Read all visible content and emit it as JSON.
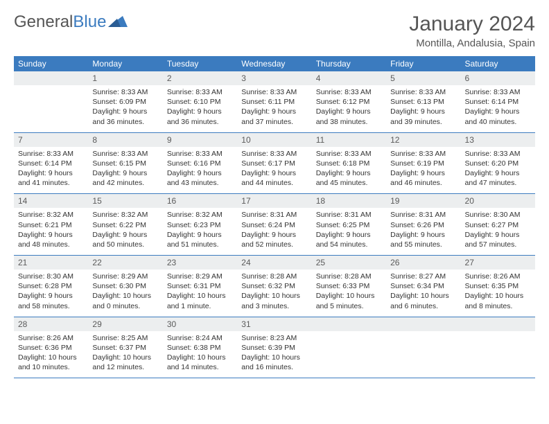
{
  "logo": {
    "text1": "General",
    "text2": "Blue"
  },
  "title": "January 2024",
  "location": "Montilla, Andalusia, Spain",
  "colors": {
    "header_bg": "#3b7bbf",
    "daynum_bg": "#eceeef",
    "border": "#3b7bbf",
    "text": "#333333",
    "title": "#555555"
  },
  "day_names": [
    "Sunday",
    "Monday",
    "Tuesday",
    "Wednesday",
    "Thursday",
    "Friday",
    "Saturday"
  ],
  "weeks": [
    [
      {
        "n": "",
        "l": [
          "",
          "",
          ""
        ]
      },
      {
        "n": "1",
        "l": [
          "Sunrise: 8:33 AM",
          "Sunset: 6:09 PM",
          "Daylight: 9 hours and 36 minutes."
        ]
      },
      {
        "n": "2",
        "l": [
          "Sunrise: 8:33 AM",
          "Sunset: 6:10 PM",
          "Daylight: 9 hours and 36 minutes."
        ]
      },
      {
        "n": "3",
        "l": [
          "Sunrise: 8:33 AM",
          "Sunset: 6:11 PM",
          "Daylight: 9 hours and 37 minutes."
        ]
      },
      {
        "n": "4",
        "l": [
          "Sunrise: 8:33 AM",
          "Sunset: 6:12 PM",
          "Daylight: 9 hours and 38 minutes."
        ]
      },
      {
        "n": "5",
        "l": [
          "Sunrise: 8:33 AM",
          "Sunset: 6:13 PM",
          "Daylight: 9 hours and 39 minutes."
        ]
      },
      {
        "n": "6",
        "l": [
          "Sunrise: 8:33 AM",
          "Sunset: 6:14 PM",
          "Daylight: 9 hours and 40 minutes."
        ]
      }
    ],
    [
      {
        "n": "7",
        "l": [
          "Sunrise: 8:33 AM",
          "Sunset: 6:14 PM",
          "Daylight: 9 hours and 41 minutes."
        ]
      },
      {
        "n": "8",
        "l": [
          "Sunrise: 8:33 AM",
          "Sunset: 6:15 PM",
          "Daylight: 9 hours and 42 minutes."
        ]
      },
      {
        "n": "9",
        "l": [
          "Sunrise: 8:33 AM",
          "Sunset: 6:16 PM",
          "Daylight: 9 hours and 43 minutes."
        ]
      },
      {
        "n": "10",
        "l": [
          "Sunrise: 8:33 AM",
          "Sunset: 6:17 PM",
          "Daylight: 9 hours and 44 minutes."
        ]
      },
      {
        "n": "11",
        "l": [
          "Sunrise: 8:33 AM",
          "Sunset: 6:18 PM",
          "Daylight: 9 hours and 45 minutes."
        ]
      },
      {
        "n": "12",
        "l": [
          "Sunrise: 8:33 AM",
          "Sunset: 6:19 PM",
          "Daylight: 9 hours and 46 minutes."
        ]
      },
      {
        "n": "13",
        "l": [
          "Sunrise: 8:33 AM",
          "Sunset: 6:20 PM",
          "Daylight: 9 hours and 47 minutes."
        ]
      }
    ],
    [
      {
        "n": "14",
        "l": [
          "Sunrise: 8:32 AM",
          "Sunset: 6:21 PM",
          "Daylight: 9 hours and 48 minutes."
        ]
      },
      {
        "n": "15",
        "l": [
          "Sunrise: 8:32 AM",
          "Sunset: 6:22 PM",
          "Daylight: 9 hours and 50 minutes."
        ]
      },
      {
        "n": "16",
        "l": [
          "Sunrise: 8:32 AM",
          "Sunset: 6:23 PM",
          "Daylight: 9 hours and 51 minutes."
        ]
      },
      {
        "n": "17",
        "l": [
          "Sunrise: 8:31 AM",
          "Sunset: 6:24 PM",
          "Daylight: 9 hours and 52 minutes."
        ]
      },
      {
        "n": "18",
        "l": [
          "Sunrise: 8:31 AM",
          "Sunset: 6:25 PM",
          "Daylight: 9 hours and 54 minutes."
        ]
      },
      {
        "n": "19",
        "l": [
          "Sunrise: 8:31 AM",
          "Sunset: 6:26 PM",
          "Daylight: 9 hours and 55 minutes."
        ]
      },
      {
        "n": "20",
        "l": [
          "Sunrise: 8:30 AM",
          "Sunset: 6:27 PM",
          "Daylight: 9 hours and 57 minutes."
        ]
      }
    ],
    [
      {
        "n": "21",
        "l": [
          "Sunrise: 8:30 AM",
          "Sunset: 6:28 PM",
          "Daylight: 9 hours and 58 minutes."
        ]
      },
      {
        "n": "22",
        "l": [
          "Sunrise: 8:29 AM",
          "Sunset: 6:30 PM",
          "Daylight: 10 hours and 0 minutes."
        ]
      },
      {
        "n": "23",
        "l": [
          "Sunrise: 8:29 AM",
          "Sunset: 6:31 PM",
          "Daylight: 10 hours and 1 minute."
        ]
      },
      {
        "n": "24",
        "l": [
          "Sunrise: 8:28 AM",
          "Sunset: 6:32 PM",
          "Daylight: 10 hours and 3 minutes."
        ]
      },
      {
        "n": "25",
        "l": [
          "Sunrise: 8:28 AM",
          "Sunset: 6:33 PM",
          "Daylight: 10 hours and 5 minutes."
        ]
      },
      {
        "n": "26",
        "l": [
          "Sunrise: 8:27 AM",
          "Sunset: 6:34 PM",
          "Daylight: 10 hours and 6 minutes."
        ]
      },
      {
        "n": "27",
        "l": [
          "Sunrise: 8:26 AM",
          "Sunset: 6:35 PM",
          "Daylight: 10 hours and 8 minutes."
        ]
      }
    ],
    [
      {
        "n": "28",
        "l": [
          "Sunrise: 8:26 AM",
          "Sunset: 6:36 PM",
          "Daylight: 10 hours and 10 minutes."
        ]
      },
      {
        "n": "29",
        "l": [
          "Sunrise: 8:25 AM",
          "Sunset: 6:37 PM",
          "Daylight: 10 hours and 12 minutes."
        ]
      },
      {
        "n": "30",
        "l": [
          "Sunrise: 8:24 AM",
          "Sunset: 6:38 PM",
          "Daylight: 10 hours and 14 minutes."
        ]
      },
      {
        "n": "31",
        "l": [
          "Sunrise: 8:23 AM",
          "Sunset: 6:39 PM",
          "Daylight: 10 hours and 16 minutes."
        ]
      },
      {
        "n": "",
        "l": [
          "",
          "",
          ""
        ]
      },
      {
        "n": "",
        "l": [
          "",
          "",
          ""
        ]
      },
      {
        "n": "",
        "l": [
          "",
          "",
          ""
        ]
      }
    ]
  ]
}
